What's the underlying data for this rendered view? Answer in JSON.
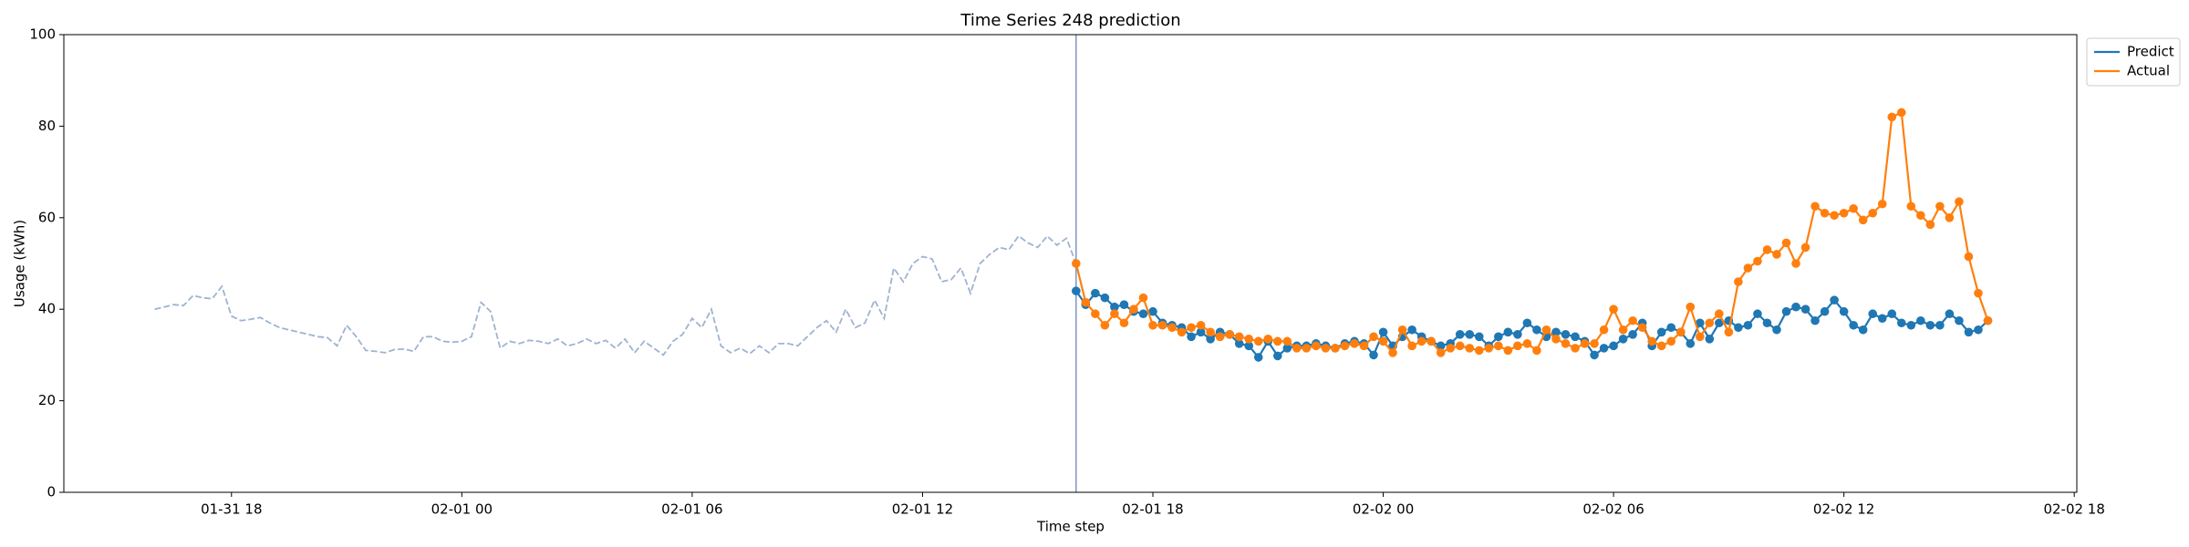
{
  "chart_data": {
    "type": "line",
    "title": "Time Series 248 prediction",
    "xlabel": "Time step",
    "ylabel": "Usage (kWh)",
    "x": [
      "01-31 16:00",
      "01-31 16:15",
      "01-31 16:30",
      "01-31 16:45",
      "01-31 17:00",
      "01-31 17:15",
      "01-31 17:30",
      "01-31 17:45",
      "01-31 18:00",
      "01-31 18:15",
      "01-31 18:30",
      "01-31 18:45",
      "01-31 19:00",
      "01-31 19:15",
      "01-31 19:30",
      "01-31 19:45",
      "01-31 20:00",
      "01-31 20:15",
      "01-31 20:30",
      "01-31 20:45",
      "01-31 21:00",
      "01-31 21:15",
      "01-31 21:30",
      "01-31 21:45",
      "01-31 22:00",
      "01-31 22:15",
      "01-31 22:30",
      "01-31 22:45",
      "01-31 23:00",
      "01-31 23:15",
      "01-31 23:30",
      "01-31 23:45",
      "02-01 00:00",
      "02-01 00:15",
      "02-01 00:30",
      "02-01 00:45",
      "02-01 01:00",
      "02-01 01:15",
      "02-01 01:30",
      "02-01 01:45",
      "02-01 02:00",
      "02-01 02:15",
      "02-01 02:30",
      "02-01 02:45",
      "02-01 03:00",
      "02-01 03:15",
      "02-01 03:30",
      "02-01 03:45",
      "02-01 04:00",
      "02-01 04:15",
      "02-01 04:30",
      "02-01 04:45",
      "02-01 05:00",
      "02-01 05:15",
      "02-01 05:30",
      "02-01 05:45",
      "02-01 06:00",
      "02-01 06:15",
      "02-01 06:30",
      "02-01 06:45",
      "02-01 07:00",
      "02-01 07:15",
      "02-01 07:30",
      "02-01 07:45",
      "02-01 08:00",
      "02-01 08:15",
      "02-01 08:30",
      "02-01 08:45",
      "02-01 09:00",
      "02-01 09:15",
      "02-01 09:30",
      "02-01 09:45",
      "02-01 10:00",
      "02-01 10:15",
      "02-01 10:30",
      "02-01 10:45",
      "02-01 11:00",
      "02-01 11:15",
      "02-01 11:30",
      "02-01 11:45",
      "02-01 12:00",
      "02-01 12:15",
      "02-01 12:30",
      "02-01 12:45",
      "02-01 13:00",
      "02-01 13:15",
      "02-01 13:30",
      "02-01 13:45",
      "02-01 14:00",
      "02-01 14:15",
      "02-01 14:30",
      "02-01 14:45",
      "02-01 15:00",
      "02-01 15:15",
      "02-01 15:30",
      "02-01 15:45",
      "02-01 16:00",
      "02-01 16:15",
      "02-01 16:30",
      "02-01 16:45",
      "02-01 17:00",
      "02-01 17:15",
      "02-01 17:30",
      "02-01 17:45",
      "02-01 18:00",
      "02-01 18:15",
      "02-01 18:30",
      "02-01 18:45",
      "02-01 19:00",
      "02-01 19:15",
      "02-01 19:30",
      "02-01 19:45",
      "02-01 20:00",
      "02-01 20:15",
      "02-01 20:30",
      "02-01 20:45",
      "02-01 21:00",
      "02-01 21:15",
      "02-01 21:30",
      "02-01 21:45",
      "02-01 22:00",
      "02-01 22:15",
      "02-01 22:30",
      "02-01 22:45",
      "02-01 23:00",
      "02-01 23:15",
      "02-01 23:30",
      "02-01 23:45",
      "02-02 00:00",
      "02-02 00:15",
      "02-02 00:30",
      "02-02 00:45",
      "02-02 01:00",
      "02-02 01:15",
      "02-02 01:30",
      "02-02 01:45",
      "02-02 02:00",
      "02-02 02:15",
      "02-02 02:30",
      "02-02 02:45",
      "02-02 03:00",
      "02-02 03:15",
      "02-02 03:30",
      "02-02 03:45",
      "02-02 04:00",
      "02-02 04:15",
      "02-02 04:30",
      "02-02 04:45",
      "02-02 05:00",
      "02-02 05:15",
      "02-02 05:30",
      "02-02 05:45",
      "02-02 06:00",
      "02-02 06:15",
      "02-02 06:30",
      "02-02 06:45",
      "02-02 07:00",
      "02-02 07:15",
      "02-02 07:30",
      "02-02 07:45",
      "02-02 08:00",
      "02-02 08:15",
      "02-02 08:30",
      "02-02 08:45",
      "02-02 09:00",
      "02-02 09:15",
      "02-02 09:30",
      "02-02 09:45",
      "02-02 10:00",
      "02-02 10:15",
      "02-02 10:30",
      "02-02 10:45",
      "02-02 11:00",
      "02-02 11:15",
      "02-02 11:30",
      "02-02 11:45",
      "02-02 12:00",
      "02-02 12:15",
      "02-02 12:30",
      "02-02 12:45",
      "02-02 13:00",
      "02-02 13:15",
      "02-02 13:30",
      "02-02 13:45",
      "02-02 14:00",
      "02-02 14:15",
      "02-02 14:30",
      "02-02 14:45",
      "02-02 15:00",
      "02-02 15:15",
      "02-02 15:30",
      "02-02 15:45"
    ],
    "series": [
      {
        "color": "#9fb3d1",
        "dashed": true,
        "marker": false,
        "values": [
          40,
          40.5,
          41,
          40.8,
          43,
          42.5,
          42.3,
          45,
          38.5,
          37.5,
          37.8,
          38.2,
          37,
          36,
          35.5,
          35,
          34.5,
          34,
          33.8,
          32,
          36.5,
          34,
          31,
          30.8,
          30.5,
          31.2,
          31.3,
          30.8,
          34,
          34,
          33,
          32.8,
          33,
          34,
          41.5,
          39.5,
          31.5,
          33,
          32.5,
          33.2,
          33,
          32.5,
          33.5,
          32,
          32.5,
          33.5,
          32.5,
          33.2,
          31.5,
          33.5,
          30.5,
          33,
          31.5,
          30,
          33,
          34.5,
          38,
          36,
          40,
          32,
          30.5,
          31.5,
          30.3,
          32,
          30.5,
          32.5,
          32.5,
          32,
          34,
          36,
          37.5,
          35,
          40,
          36,
          37,
          42,
          38,
          49,
          46,
          50,
          51.5,
          51,
          46,
          46.5,
          49,
          43.5,
          50,
          52,
          53.5,
          53,
          56,
          54.5,
          53.5,
          56,
          54,
          55.5,
          50,
          null,
          null,
          null,
          null,
          null,
          null,
          null,
          null,
          null,
          null,
          null,
          null,
          null,
          null,
          null,
          null,
          null,
          null,
          null,
          null,
          null,
          null,
          null,
          null,
          null,
          null,
          null,
          null,
          null,
          null,
          null,
          null,
          null,
          null,
          null,
          null,
          null,
          null,
          null,
          null,
          null,
          null,
          null,
          null,
          null,
          null,
          null,
          null,
          null,
          null,
          null,
          null,
          null,
          null,
          null,
          null,
          null,
          null,
          null,
          null,
          null,
          null,
          null,
          null,
          null,
          null,
          null,
          null,
          null,
          null,
          null,
          null,
          null,
          null,
          null,
          null,
          null,
          null,
          null,
          null,
          null,
          null,
          null,
          null,
          null,
          null,
          null,
          null,
          null,
          null,
          null,
          null,
          null,
          null,
          null
        ]
      },
      {
        "name": "Predict",
        "color": "#1f77b4",
        "dashed": false,
        "marker": true,
        "values": [
          null,
          null,
          null,
          null,
          null,
          null,
          null,
          null,
          null,
          null,
          null,
          null,
          null,
          null,
          null,
          null,
          null,
          null,
          null,
          null,
          null,
          null,
          null,
          null,
          null,
          null,
          null,
          null,
          null,
          null,
          null,
          null,
          null,
          null,
          null,
          null,
          null,
          null,
          null,
          null,
          null,
          null,
          null,
          null,
          null,
          null,
          null,
          null,
          null,
          null,
          null,
          null,
          null,
          null,
          null,
          null,
          null,
          null,
          null,
          null,
          null,
          null,
          null,
          null,
          null,
          null,
          null,
          null,
          null,
          null,
          null,
          null,
          null,
          null,
          null,
          null,
          null,
          null,
          null,
          null,
          null,
          null,
          null,
          null,
          null,
          null,
          null,
          null,
          null,
          null,
          null,
          null,
          null,
          null,
          null,
          null,
          44,
          41,
          43.5,
          42.5,
          40.5,
          41,
          39.5,
          39,
          39.5,
          37,
          36.5,
          36,
          34,
          35,
          33.5,
          35,
          34.5,
          32.5,
          32,
          29.5,
          33,
          29.8,
          31.5,
          32,
          32,
          32.5,
          32,
          31.5,
          32.5,
          33,
          32.5,
          30,
          35,
          32,
          34,
          35.5,
          34,
          33,
          32,
          32.5,
          34.5,
          34.5,
          34,
          32,
          34,
          35,
          34.5,
          37,
          35.5,
          34,
          35,
          34.5,
          34,
          33,
          30,
          31.5,
          32,
          33.5,
          34.5,
          37,
          32,
          35,
          36,
          35,
          32.5,
          37,
          33.5,
          37,
          37.5,
          36,
          36.5,
          39,
          37,
          35.5,
          39.5,
          40.5,
          40,
          37.5,
          39.5,
          42,
          39.5,
          36.5,
          35.5,
          39,
          38,
          39,
          37,
          36.5,
          37.5,
          36.5,
          36.5,
          39,
          37.5,
          35,
          35.5,
          37.5
        ]
      },
      {
        "name": "Actual",
        "color": "#ff7f0e",
        "dashed": false,
        "marker": true,
        "values": [
          null,
          null,
          null,
          null,
          null,
          null,
          null,
          null,
          null,
          null,
          null,
          null,
          null,
          null,
          null,
          null,
          null,
          null,
          null,
          null,
          null,
          null,
          null,
          null,
          null,
          null,
          null,
          null,
          null,
          null,
          null,
          null,
          null,
          null,
          null,
          null,
          null,
          null,
          null,
          null,
          null,
          null,
          null,
          null,
          null,
          null,
          null,
          null,
          null,
          null,
          null,
          null,
          null,
          null,
          null,
          null,
          null,
          null,
          null,
          null,
          null,
          null,
          null,
          null,
          null,
          null,
          null,
          null,
          null,
          null,
          null,
          null,
          null,
          null,
          null,
          null,
          null,
          null,
          null,
          null,
          null,
          null,
          null,
          null,
          null,
          null,
          null,
          null,
          null,
          null,
          null,
          null,
          null,
          null,
          null,
          null,
          50,
          41.5,
          39,
          36.5,
          39,
          37,
          40,
          42.5,
          36.5,
          36.5,
          36,
          35,
          36,
          36.5,
          35,
          34,
          34.5,
          34,
          33.5,
          33,
          33.5,
          33,
          33,
          31.5,
          31.5,
          32,
          31.5,
          31.5,
          32,
          32.5,
          32,
          34,
          33,
          30.5,
          35.5,
          32,
          33,
          33,
          30.5,
          31.5,
          32,
          31.5,
          31,
          31.5,
          32,
          31,
          32,
          32.5,
          31,
          35.5,
          33.5,
          32.5,
          31.5,
          32.5,
          32.5,
          35.5,
          40,
          35.5,
          37.5,
          36,
          33,
          32,
          33,
          35,
          40.5,
          34,
          37,
          39,
          35,
          46,
          49,
          50.5,
          53,
          52,
          54.5,
          50,
          53.5,
          62.5,
          61,
          60.5,
          61,
          62,
          59.5,
          61,
          63,
          82,
          83,
          62.5,
          60.5,
          58.5,
          62.5,
          60,
          63.5,
          51.5,
          43.5,
          37.5
        ]
      }
    ],
    "xlim": [
      "01-31 13:38",
      "02-02 18:04"
    ],
    "xticks": [
      "01-31 18",
      "02-01 00",
      "02-01 06",
      "02-01 12",
      "02-01 18",
      "02-02 00",
      "02-02 06",
      "02-02 12",
      "02-02 18"
    ],
    "ylim": [
      0,
      100
    ],
    "yticks": [
      0,
      20,
      40,
      60,
      80,
      100
    ],
    "grid": false,
    "legend": "outside upper right",
    "split_line_color": "#8094c9"
  }
}
